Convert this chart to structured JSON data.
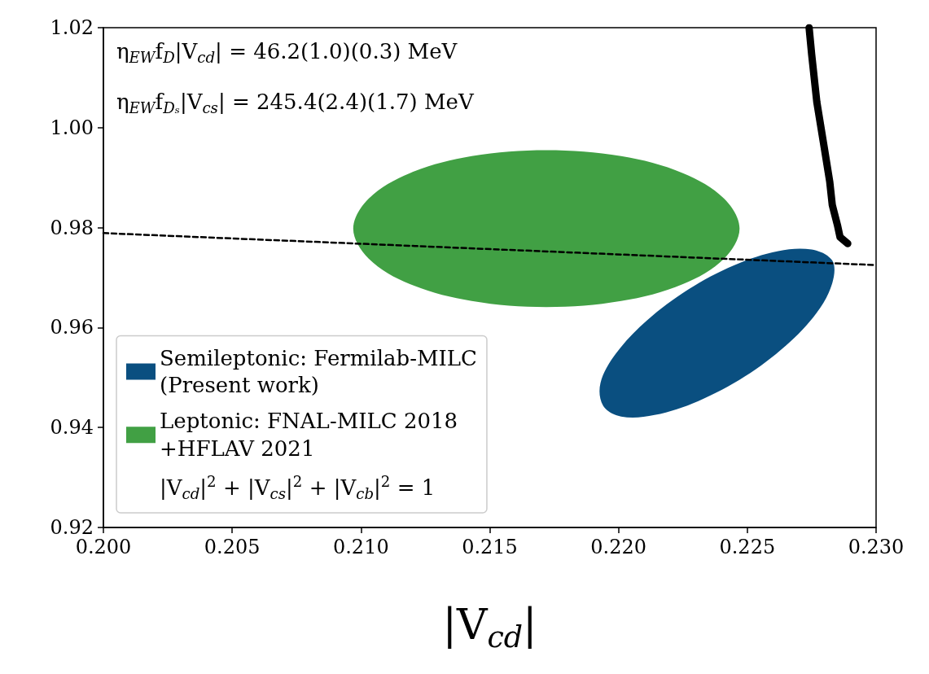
{
  "chart_data": {
    "type": "area",
    "xlabel": "|V$_{cd}$|",
    "annotations": [
      "η$_{EW}$f$_{D}$|V$_{cd}$| = 46.2(1.0)(0.3) MeV",
      "η$_{EW}$f$_{Dₛ}$|V$_{cs}$| = 245.4(2.4)(1.7) MeV"
    ],
    "xlim": [
      0.2,
      0.23
    ],
    "xticks": [
      {
        "value": 0.2,
        "label": "0.200"
      },
      {
        "value": 0.205,
        "label": "0.205"
      },
      {
        "value": 0.21,
        "label": "0.210"
      },
      {
        "value": 0.215,
        "label": "0.215"
      },
      {
        "value": 0.22,
        "label": "0.220"
      },
      {
        "value": 0.225,
        "label": "0.225"
      },
      {
        "value": 0.23,
        "label": "0.230"
      }
    ],
    "ylim": [
      0.92,
      1.02
    ],
    "yticks": [
      0.92,
      0.94,
      0.96,
      0.98,
      {
        "value": 1.0,
        "label": "1.00"
      },
      1.02
    ],
    "grid": false,
    "legend": "bottom left",
    "series": [
      {
        "name": "Semileptonic: Fermilab-MILC\n(Present work)",
        "color": "#0a4f80",
        "x": [
          0.2283,
          0.2283,
          0.2277,
          0.2265,
          0.2249,
          0.2231,
          0.2214,
          0.2201,
          0.2194,
          0.2193,
          0.2199,
          0.2211,
          0.2227,
          0.2245,
          0.2262,
          0.2275,
          0.2283
        ],
        "values": [
          0.9734,
          0.9689,
          0.963,
          0.9564,
          0.9502,
          0.9453,
          0.9425,
          0.9422,
          0.9444,
          0.9489,
          0.9548,
          0.9614,
          0.9676,
          0.9725,
          0.9753,
          0.9756,
          0.9734
        ]
      },
      {
        "name": "Leptonic: FNAL-MILC 2018\n+HFLAV 2021",
        "color": "#41a044",
        "x": [
          0.2247,
          0.2241,
          0.2225,
          0.2201,
          0.2172,
          0.2143,
          0.2119,
          0.2103,
          0.2097,
          0.2103,
          0.2119,
          0.2143,
          0.2172,
          0.2201,
          0.2225,
          0.2241,
          0.2247
        ],
        "values": [
          0.9798,
          0.9858,
          0.9909,
          0.9943,
          0.9955,
          0.9943,
          0.9909,
          0.9858,
          0.9798,
          0.9738,
          0.9687,
          0.9653,
          0.9641,
          0.9653,
          0.9687,
          0.9738,
          0.9798
        ]
      },
      {
        "name": "|V$_{cd}$|$^{2}$ + |V$_{cs}$|$^{2}$ + |V$_{cb}$|$^{2}$ = 1",
        "type": "line",
        "line_style": "dashed",
        "color": "#000000",
        "x": [
          0.2,
          0.23
        ],
        "values": [
          0.9789,
          0.9725
        ]
      },
      {
        "type": "line",
        "line_style": "solid",
        "color": "#000000",
        "x": [
          0.2274,
          0.2275,
          0.2277,
          0.228,
          0.2282,
          0.2283,
          0.2285,
          0.2286,
          0.2289
        ],
        "values": [
          1.02,
          1.0146,
          1.0051,
          0.9956,
          0.9892,
          0.9845,
          0.9805,
          0.9781,
          0.9768
        ]
      }
    ]
  }
}
